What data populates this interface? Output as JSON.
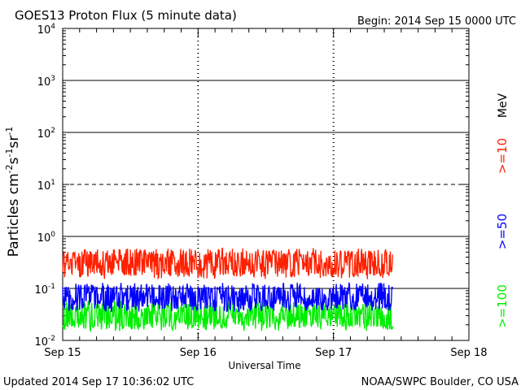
{
  "header": {
    "title": "GOES13 Proton Flux (5 minute data)",
    "begin": "Begin: 2014 Sep 15 0000 UTC"
  },
  "footer": {
    "updated": "Updated 2014 Sep 17 10:36:02 UTC",
    "credit": "NOAA/SWPC Boulder, CO USA"
  },
  "chart_data": {
    "type": "line",
    "title": "GOES13 Proton Flux (5 minute data)",
    "xlabel": "Universal Time",
    "ylabel": "Particles cm-2s-1sr-1",
    "yscale": "log",
    "ylim": [
      0.01,
      10000
    ],
    "xlim": [
      "2014-09-15 00:00",
      "2014-09-18 00:00"
    ],
    "x_ticks": [
      "Sep 15",
      "Sep 16",
      "Sep 17",
      "Sep 18"
    ],
    "y_ticks": [
      {
        "base": "10",
        "exp": "-2",
        "value": 0.01
      },
      {
        "base": "10",
        "exp": "-1",
        "value": 0.1
      },
      {
        "base": "10",
        "exp": "0",
        "value": 1
      },
      {
        "base": "10",
        "exp": "1",
        "value": 10
      },
      {
        "base": "10",
        "exp": "2",
        "value": 100
      },
      {
        "base": "10",
        "exp": "3",
        "value": 1000
      },
      {
        "base": "10",
        "exp": "4",
        "value": 10000
      }
    ],
    "legend_unit": "MeV",
    "legend_position": "right",
    "data_end": "2014-09-17 10:30",
    "grid": true,
    "series": [
      {
        "name": ">=10",
        "color": "#ff2000",
        "typical_range": [
          0.15,
          0.6
        ]
      },
      {
        "name": ">=50",
        "color": "#0000ff",
        "typical_range": [
          0.035,
          0.13
        ]
      },
      {
        "name": ">=100",
        "color": "#00ee00",
        "typical_range": [
          0.015,
          0.06
        ]
      }
    ]
  }
}
